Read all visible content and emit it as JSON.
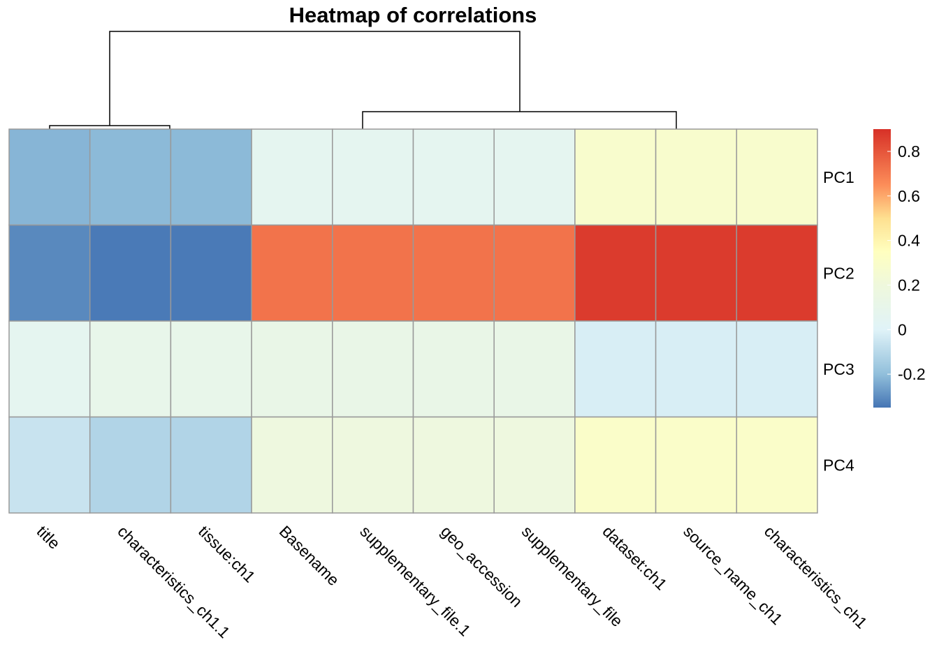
{
  "chart_data": {
    "type": "heatmap",
    "title": "Heatmap of correlations",
    "columns": [
      "title",
      "characteristics_ch1.1",
      "tissue:ch1",
      "Basename",
      "supplementary_file.1",
      "geo_accession",
      "supplementary_file",
      "dataset:ch1",
      "source_name_ch1",
      "characteristics_ch1"
    ],
    "rows": [
      "PC1",
      "PC2",
      "PC3",
      "PC4"
    ],
    "values": [
      [
        -0.22,
        -0.21,
        -0.21,
        0.06,
        0.06,
        0.06,
        0.06,
        0.28,
        0.28,
        0.28
      ],
      [
        -0.31,
        -0.34,
        -0.34,
        0.72,
        0.72,
        0.72,
        0.72,
        0.87,
        0.87,
        0.87
      ],
      [
        0.06,
        0.1,
        0.1,
        0.12,
        0.12,
        0.12,
        0.12,
        -0.02,
        -0.02,
        -0.02
      ],
      [
        -0.06,
        -0.12,
        -0.12,
        0.18,
        0.18,
        0.18,
        0.18,
        0.3,
        0.3,
        0.3
      ]
    ],
    "color_scale": {
      "min": -0.35,
      "max": 0.9,
      "stops": [
        {
          "v": -0.35,
          "c": "#4575B4"
        },
        {
          "v": -0.2,
          "c": "#91BFDB"
        },
        {
          "v": 0.0,
          "c": "#E0F3F8"
        },
        {
          "v": 0.2,
          "c": "#EFF8DC"
        },
        {
          "v": 0.35,
          "c": "#FFFFBF"
        },
        {
          "v": 0.5,
          "c": "#FEE090"
        },
        {
          "v": 0.65,
          "c": "#FC8D59"
        },
        {
          "v": 0.9,
          "c": "#D73027"
        }
      ]
    },
    "legend": {
      "ticks": [
        0.8,
        0.6,
        0.4,
        0.2,
        0,
        -0.2
      ],
      "tick_labels": [
        "0.8",
        "0.6",
        "0.4",
        "0.2",
        "0",
        "-0.2"
      ],
      "placement": "right"
    },
    "column_dendrogram": true,
    "cell_border_color": "#999999"
  }
}
